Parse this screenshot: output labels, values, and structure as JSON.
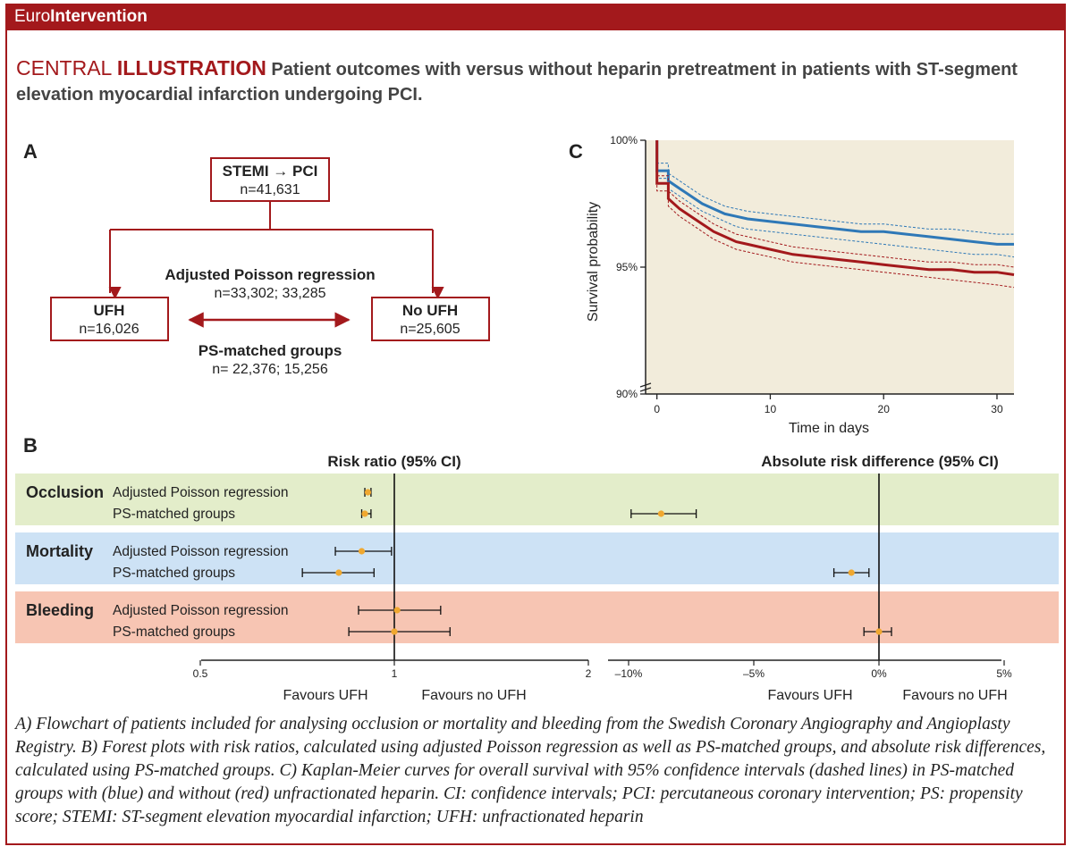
{
  "header": {
    "brand_prefix": "Euro",
    "brand_bold": "Intervention"
  },
  "title": {
    "prefix": "CENTRAL ",
    "bold": "ILLUSTRATION",
    "text": " Patient outcomes with versus without heparin pretreatment in patients with ST-segment elevation myocardial infarction undergoing PCI."
  },
  "panel_a": {
    "label": "A",
    "top_box": {
      "line1": "STEMI → PCI",
      "line2": "n=41,631"
    },
    "left_box": {
      "line1": "UFH",
      "line2": "n=16,026"
    },
    "right_box": {
      "line1": "No UFH",
      "line2": "n=25,605"
    },
    "method1": {
      "line1": "Adjusted Poisson regression",
      "line2": "n=33,302; 33,285"
    },
    "method2": {
      "line1": "PS-matched groups",
      "line2": "n= 22,376; 15,256"
    }
  },
  "panel_b": {
    "label": "B",
    "rr_title": "Risk ratio (95% CI)",
    "ard_title": "Absolute risk difference (95% CI)",
    "rr_ticks": [
      "0.5",
      "1",
      "2"
    ],
    "ard_ticks": [
      "–10%",
      "–5%",
      "0%",
      "5%"
    ],
    "rr_favours_left": "Favours UFH",
    "rr_favours_right": "Favours no UFH",
    "ard_favours_left": "Favours UFH",
    "ard_favours_right": "Favours no UFH",
    "colors": {
      "occlusion": "#e3edca",
      "mortality": "#cde2f5",
      "bleeding": "#f7c5b3",
      "point": "#f0a830"
    },
    "groups": [
      {
        "name": "Occlusion",
        "color": "#e3edca",
        "rows": [
          {
            "label": "Adjusted Poisson regression",
            "rr": 0.91,
            "rr_lo": 0.9,
            "rr_hi": 0.92,
            "ard": null
          },
          {
            "label": "PS-matched groups",
            "rr": 0.9,
            "rr_lo": 0.89,
            "rr_hi": 0.92,
            "ard": -8.7,
            "ard_lo": -9.9,
            "ard_hi": -7.3
          }
        ]
      },
      {
        "name": "Mortality",
        "color": "#cde2f5",
        "rows": [
          {
            "label": "Adjusted Poisson regression",
            "rr": 0.89,
            "rr_lo": 0.81,
            "rr_hi": 0.99,
            "ard": null
          },
          {
            "label": "PS-matched groups",
            "rr": 0.82,
            "rr_lo": 0.72,
            "rr_hi": 0.93,
            "ard": -1.1,
            "ard_lo": -1.8,
            "ard_hi": -0.4
          }
        ]
      },
      {
        "name": "Bleeding",
        "color": "#f7c5b3",
        "rows": [
          {
            "label": "Adjusted Poisson regression",
            "rr": 1.01,
            "rr_lo": 0.88,
            "rr_hi": 1.18,
            "ard": null
          },
          {
            "label": "PS-matched groups",
            "rr": 1.0,
            "rr_lo": 0.85,
            "rr_hi": 1.22,
            "ard": 0.0,
            "ard_lo": -0.6,
            "ard_hi": 0.5
          }
        ]
      }
    ]
  },
  "panel_c": {
    "label": "C",
    "chart_data": {
      "type": "line",
      "xlabel": "Time in days",
      "ylabel": "Survival probability",
      "xlim": [
        -1,
        31.5
      ],
      "ylim": [
        90,
        100
      ],
      "x_ticks": [
        "0",
        "10",
        "20",
        "30"
      ],
      "y_ticks": [
        "100%",
        "95%",
        "90%"
      ],
      "series": [
        {
          "color": "#2e78b7",
          "x": [
            0,
            0,
            1,
            1,
            2,
            3,
            4,
            5,
            6,
            7,
            8,
            10,
            12,
            14,
            16,
            18,
            20,
            22,
            24,
            26,
            28,
            30,
            31.5
          ],
          "y": [
            100,
            98.8,
            98.8,
            98.4,
            98.1,
            97.8,
            97.5,
            97.3,
            97.1,
            97.0,
            96.9,
            96.8,
            96.7,
            96.6,
            96.5,
            96.4,
            96.4,
            96.3,
            96.2,
            96.1,
            96.0,
            95.9,
            95.9
          ],
          "lower": [
            100,
            98.5,
            98.5,
            98.1,
            97.8,
            97.5,
            97.2,
            97.0,
            96.8,
            96.6,
            96.5,
            96.4,
            96.3,
            96.2,
            96.1,
            96.0,
            95.9,
            95.8,
            95.7,
            95.6,
            95.5,
            95.5,
            95.4
          ],
          "upper": [
            100,
            99.1,
            99.1,
            98.7,
            98.4,
            98.1,
            97.8,
            97.6,
            97.4,
            97.3,
            97.2,
            97.1,
            97.0,
            96.9,
            96.8,
            96.7,
            96.7,
            96.6,
            96.5,
            96.5,
            96.4,
            96.3,
            96.3
          ]
        },
        {
          "color": "#a3191c",
          "x": [
            0,
            0,
            1,
            1,
            2,
            3,
            4,
            5,
            6,
            7,
            8,
            10,
            12,
            14,
            16,
            18,
            20,
            22,
            24,
            26,
            28,
            30,
            31.5
          ],
          "y": [
            100,
            98.3,
            98.3,
            97.7,
            97.3,
            97.0,
            96.7,
            96.4,
            96.2,
            96.0,
            95.9,
            95.7,
            95.5,
            95.4,
            95.3,
            95.2,
            95.1,
            95.0,
            94.9,
            94.9,
            94.8,
            94.8,
            94.7
          ],
          "lower": [
            100,
            98.0,
            98.0,
            97.4,
            97.0,
            96.7,
            96.4,
            96.1,
            95.9,
            95.7,
            95.6,
            95.4,
            95.2,
            95.1,
            95.0,
            94.9,
            94.8,
            94.7,
            94.6,
            94.5,
            94.4,
            94.3,
            94.2
          ],
          "upper": [
            100,
            98.6,
            98.6,
            98.0,
            97.6,
            97.3,
            97.0,
            96.7,
            96.5,
            96.3,
            96.2,
            96.0,
            95.8,
            95.7,
            95.6,
            95.5,
            95.4,
            95.3,
            95.2,
            95.2,
            95.1,
            95.1,
            95.0
          ]
        }
      ]
    }
  },
  "caption": "A) Flowchart of patients included for analysing occlusion or mortality and bleeding from the Swedish Coronary Angiography and Angioplasty Registry. B) Forest plots with risk ratios, calculated using adjusted Poisson regression as well as PS-matched groups, and absolute risk differences, calculated using PS-matched groups. C) Kaplan-Meier curves for overall survival with 95% confidence intervals (dashed lines) in PS-matched groups with (blue) and without (red) unfractionated heparin. CI: confidence intervals; PCI: percutaneous coronary intervention; PS: propensity score; STEMI: ST-segment elevation myocardial infarction; UFH: unfractionated heparin"
}
